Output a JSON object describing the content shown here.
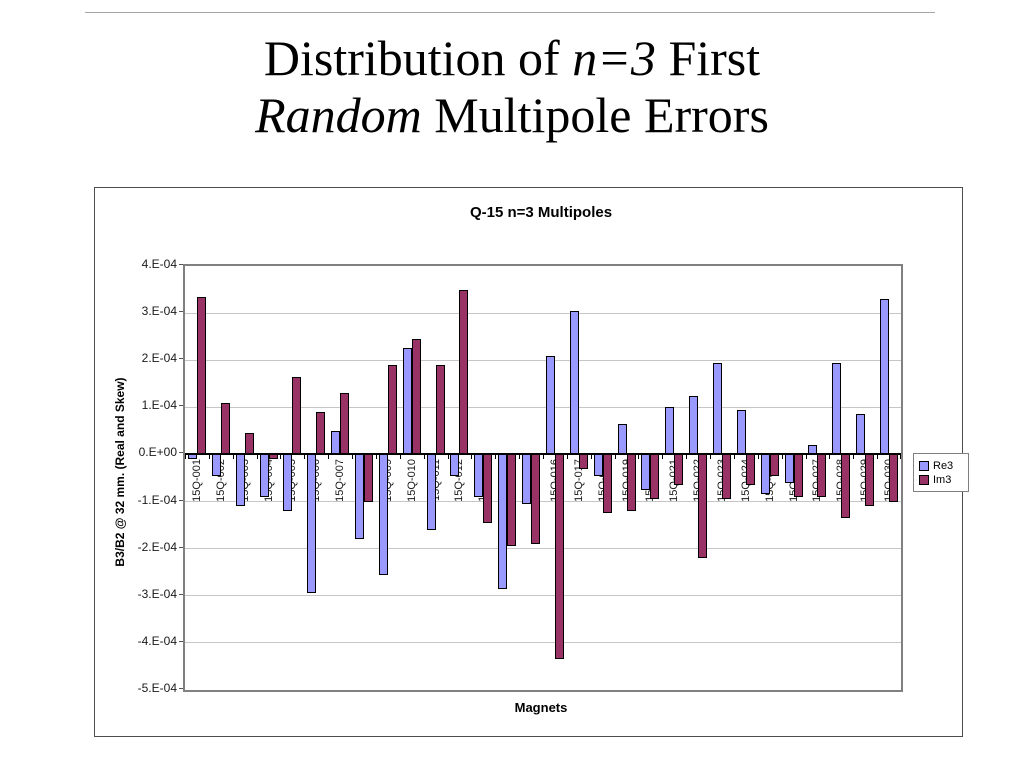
{
  "slide": {
    "title": {
      "line1": [
        {
          "text": "Distribution of ",
          "italic": false
        },
        {
          "text": "n=3",
          "italic": true
        },
        {
          "text": " First",
          "italic": false
        }
      ],
      "line2": [
        {
          "text": "Random",
          "italic": true
        },
        {
          "text": " Multipole Errors",
          "italic": false
        }
      ]
    }
  },
  "chart": {
    "title": "Q-15 n=3 Multipoles",
    "axis_titles": {
      "y": "B3/B2 @ 32 mm. (Real and Skew)",
      "x": "Magnets"
    },
    "y_tick_labels": [
      "4.E-04",
      "3.E-04",
      "2.E-04",
      "1.E-04",
      "0.E+00",
      "-1.E-04",
      "-2.E-04",
      "-3.E-04",
      "-4.E-04",
      "-5.E-04"
    ],
    "legend": {
      "items": [
        {
          "label": "Re3",
          "color": "#9999ff"
        },
        {
          "label": "Im3",
          "color": "#993366"
        }
      ]
    }
  },
  "chart_data": {
    "type": "bar",
    "title": "Q-15 n=3 Multipoles",
    "xlabel": "Magnets",
    "ylabel": "B3/B2 @ 32 mm. (Real and Skew)",
    "ylim": [
      -0.0005,
      0.0004
    ],
    "ytick_step": 0.0001,
    "grid": true,
    "legend_position": "right",
    "categories": [
      "15Q-001",
      "15Q-002",
      "15Q-003",
      "15Q-004",
      "15Q-005",
      "15Q-006",
      "15Q-007",
      "15Q-008",
      "15Q-009",
      "15Q-010",
      "15Q-011",
      "15Q-012",
      "15Q-013",
      "15Q-014",
      "15Q-015",
      "15Q-016",
      "15Q-017",
      "15Q-018",
      "15Q-019",
      "15Q-020",
      "15Q-021",
      "15Q-022",
      "15Q-023",
      "15Q-024",
      "15Q-025",
      "15Q-026",
      "15Q-027",
      "15Q-028",
      "15Q-029",
      "15Q-030"
    ],
    "series": [
      {
        "name": "Re3",
        "color": "#9999ff",
        "values": [
          -1e-05,
          -4.5e-05,
          -0.00011,
          -9e-05,
          -0.00012,
          -0.000295,
          5e-05,
          -0.00018,
          -0.000255,
          0.000225,
          -0.00016,
          -4.5e-05,
          -9e-05,
          -0.000285,
          -0.000105,
          0.00021,
          0.000305,
          -4.5e-05,
          6.5e-05,
          -7.5e-05,
          0.0001,
          0.000125,
          0.000195,
          9.5e-05,
          -8.5e-05,
          -6e-05,
          2e-05,
          0.000195,
          8.5e-05,
          0.00033
        ]
      },
      {
        "name": "Im3",
        "color": "#993366",
        "values": [
          0.000335,
          0.00011,
          4.5e-05,
          -1e-05,
          0.000165,
          9e-05,
          0.00013,
          -0.0001,
          0.00019,
          0.000245,
          0.00019,
          0.00035,
          -0.000145,
          -0.000195,
          -0.00019,
          -0.000435,
          -3e-05,
          -0.000125,
          -0.00012,
          -9.5e-05,
          -6.5e-05,
          -0.00022,
          -9.5e-05,
          -6.5e-05,
          -4.5e-05,
          -9e-05,
          -9e-05,
          -0.000135,
          -0.00011,
          -0.0001
        ]
      }
    ]
  },
  "colors": {
    "re3": "#9999ff",
    "im3": "#993366",
    "gridline": "#c6c6c6",
    "plot_border": "#808080",
    "axis": "#000000"
  }
}
